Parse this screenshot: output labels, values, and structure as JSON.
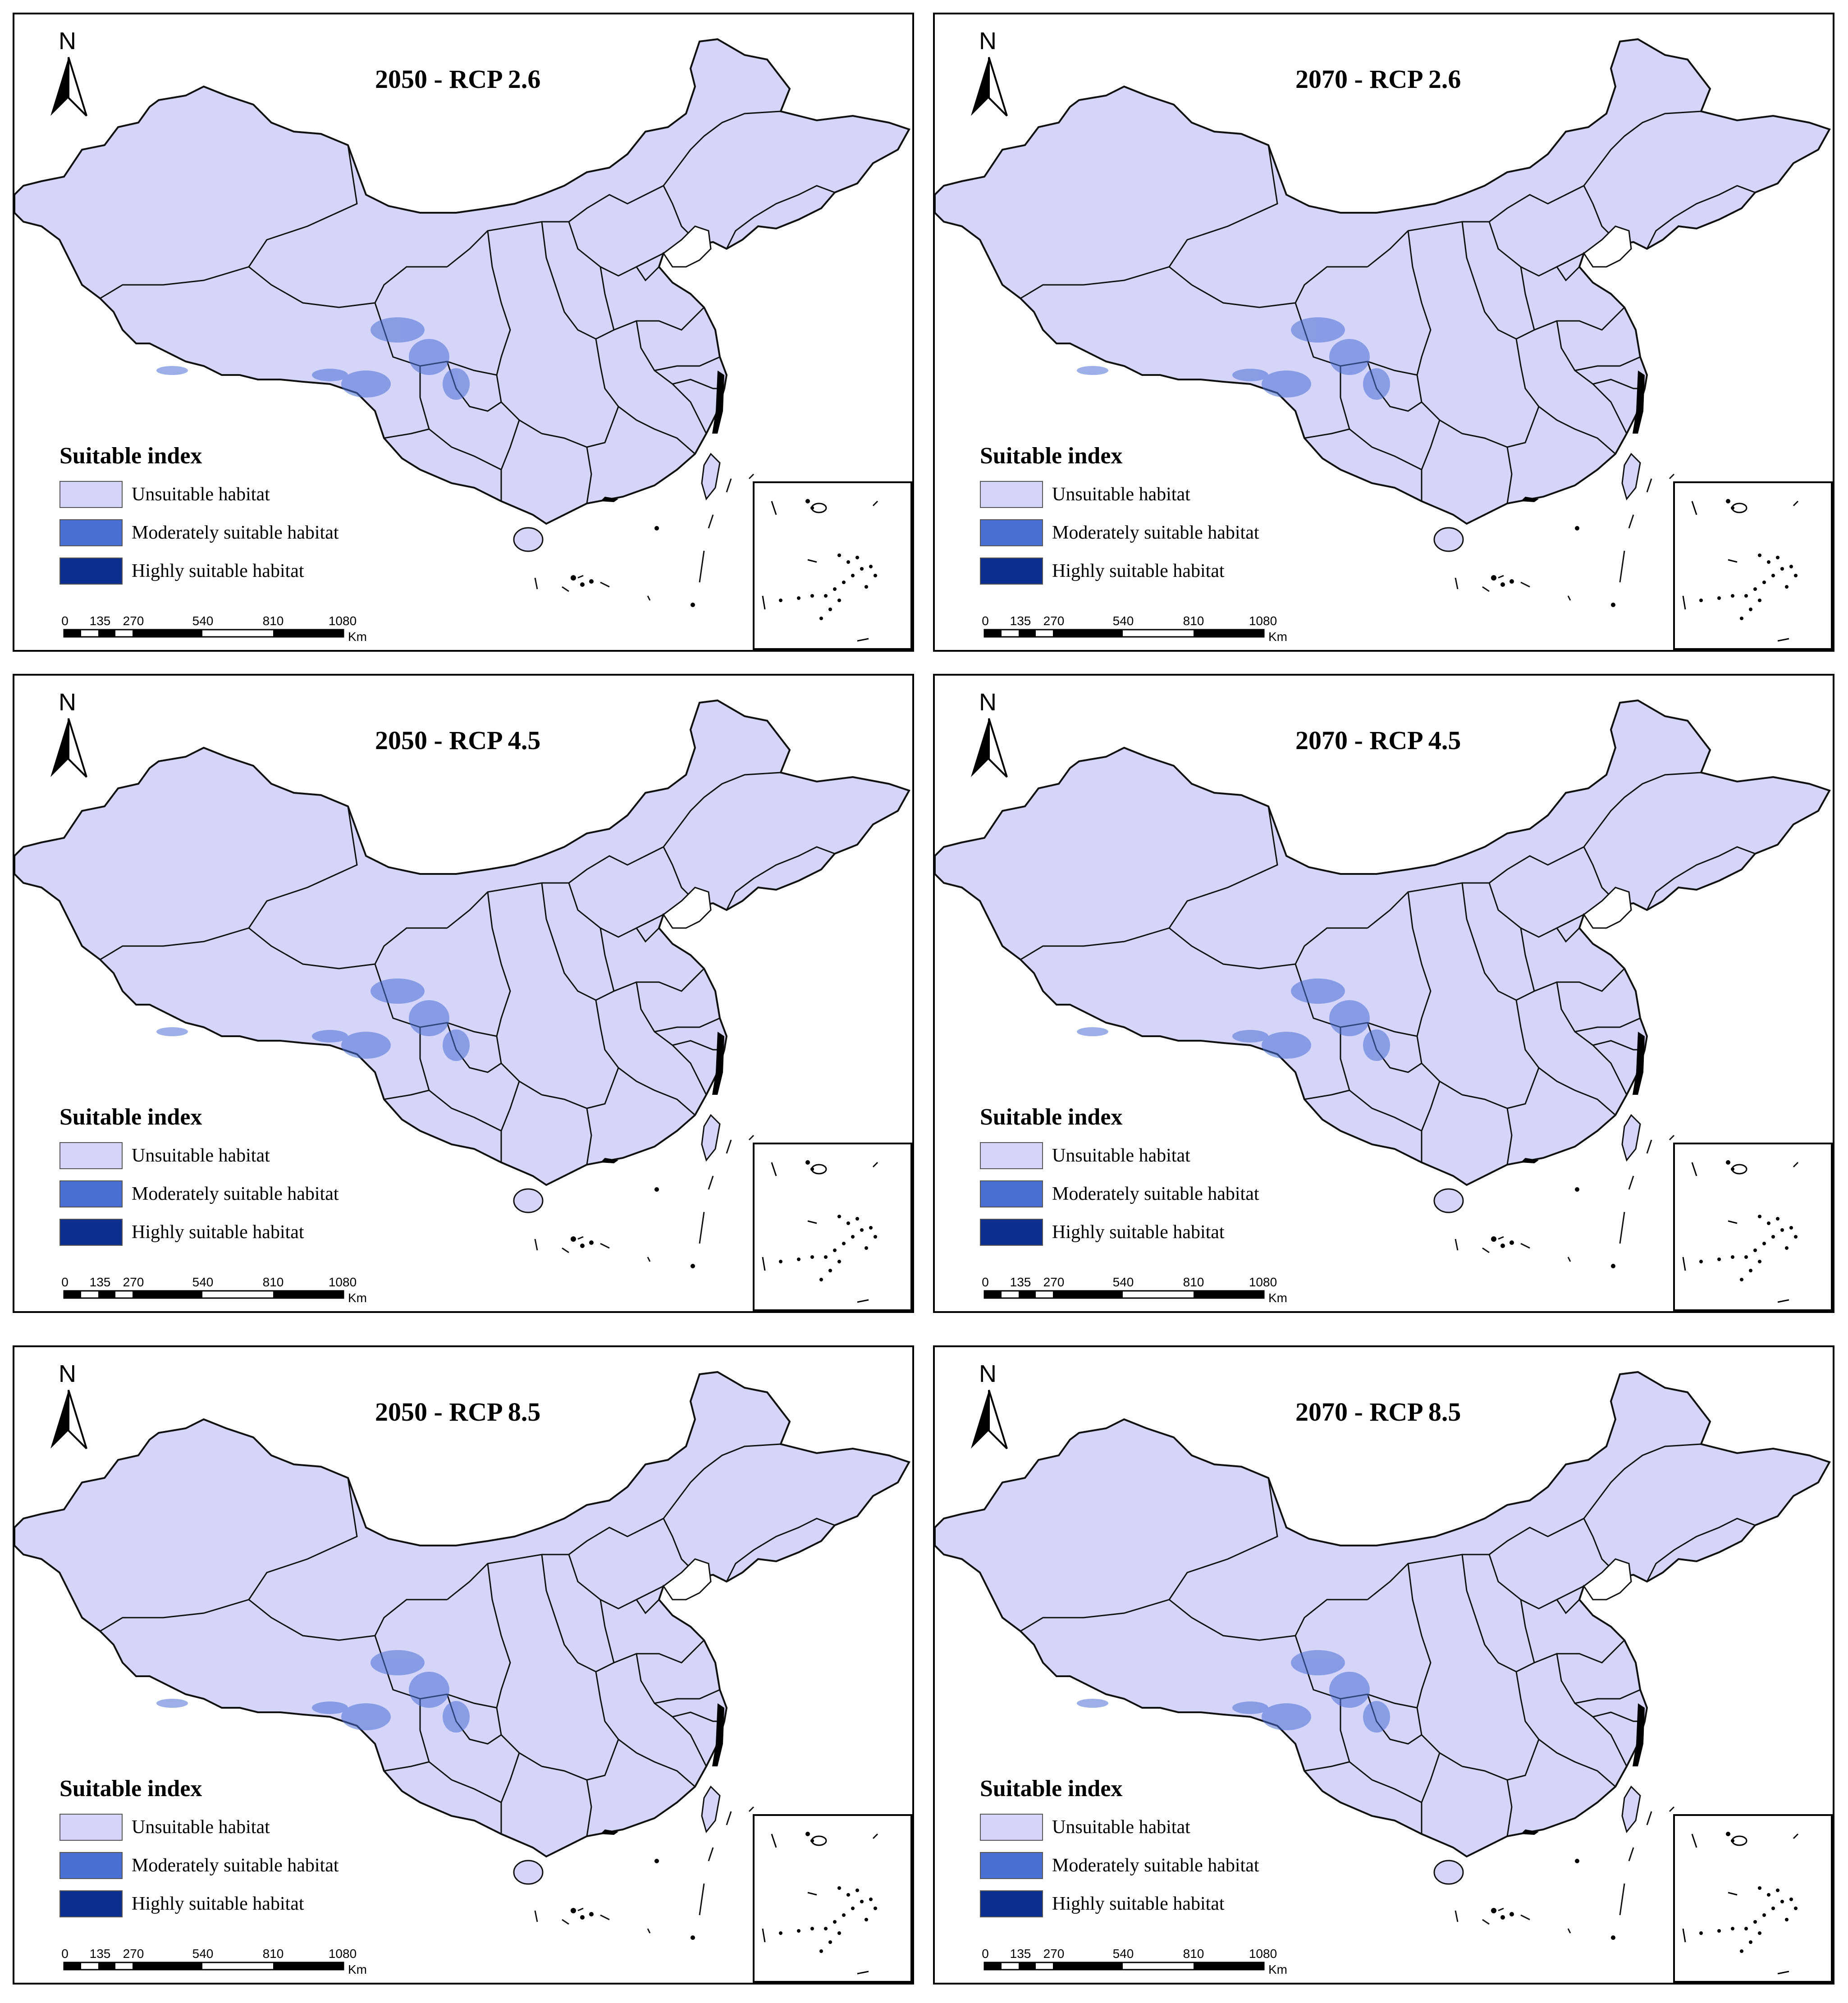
{
  "colors": {
    "unsuitable": "#d5d5fa",
    "moderate": "#4a6fd4",
    "high": "#0b2e8f",
    "border": "#111111"
  },
  "north_label": "N",
  "legend": {
    "title": "Suitable index",
    "items": [
      {
        "label": "Unsuitable habitat",
        "color_key": "unsuitable"
      },
      {
        "label": "Moderately suitable habitat",
        "color_key": "moderate"
      },
      {
        "label": "Highly suitable habitat",
        "color_key": "high"
      }
    ]
  },
  "scale": {
    "ticks": [
      "0",
      "135",
      "270",
      "540",
      "810",
      "1080"
    ],
    "unit": "Km"
  },
  "panels": [
    {
      "title": "2050 - RCP 2.6"
    },
    {
      "title": "2070 - RCP 2.6"
    },
    {
      "title": "2050 - RCP 4.5"
    },
    {
      "title": "2070 - RCP 4.5"
    },
    {
      "title": "2050 - RCP 8.5"
    },
    {
      "title": "2070 - RCP 8.5"
    }
  ]
}
